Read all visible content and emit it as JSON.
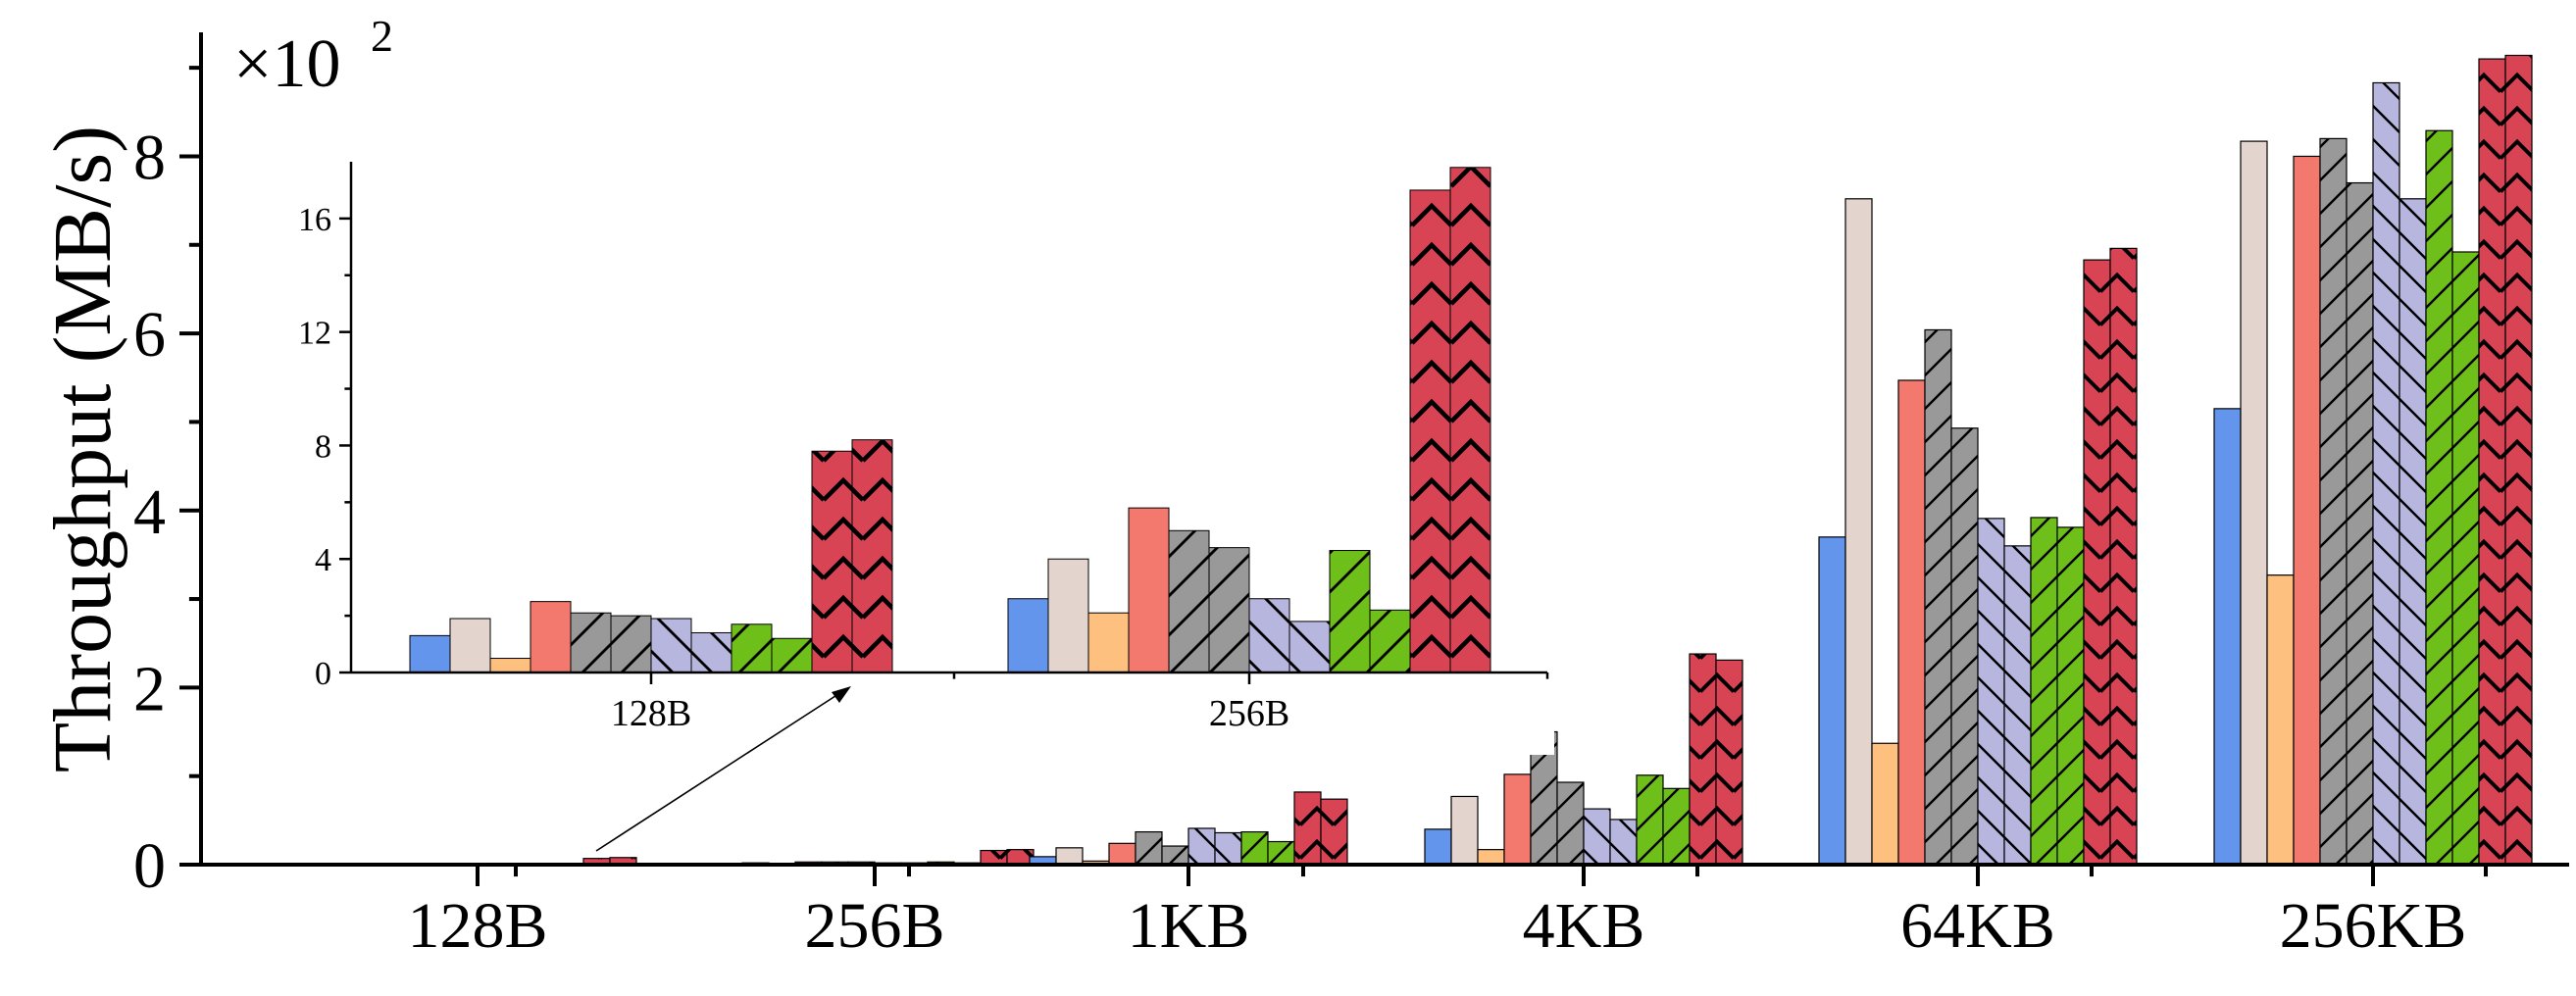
{
  "chart_data": [
    {
      "type": "bar",
      "title": "",
      "xlabel": "",
      "ylabel": "Throughput (MB/s)",
      "multiplier_label": "×10",
      "multiplier_exp": "2",
      "categories": [
        "128B",
        "256B",
        "1KB",
        "4KB",
        "64KB",
        "256KB"
      ],
      "ylim": [
        0,
        9.4
      ],
      "yticks": [
        0,
        2,
        4,
        6,
        8
      ],
      "ytick_labels": [
        "0",
        "2",
        "4",
        "6",
        "8"
      ],
      "grid": false,
      "legend": "none",
      "series": [
        {
          "color": "#6495ED",
          "pattern": "solid",
          "values": [
            0.0,
            0.01,
            0.09,
            0.4,
            3.7,
            5.15
          ]
        },
        {
          "color": "#E3D5CE",
          "pattern": "solid",
          "values": [
            0.0,
            0.02,
            0.19,
            0.77,
            7.52,
            8.17
          ]
        },
        {
          "color": "#FDC07F",
          "pattern": "solid",
          "values": [
            0.0,
            0.01,
            0.04,
            0.17,
            1.37,
            3.27
          ]
        },
        {
          "color": "#F3796E",
          "pattern": "solid",
          "values": [
            0.0,
            0.03,
            0.24,
            1.02,
            5.47,
            8.0
          ]
        },
        {
          "color": "#999999",
          "pattern": "slash",
          "values": [
            0.0,
            0.03,
            0.37,
            1.5,
            6.04,
            8.2
          ]
        },
        {
          "color": "#999999",
          "pattern": "slash",
          "values": [
            0.0,
            0.03,
            0.21,
            0.93,
            4.93,
            7.7
          ]
        },
        {
          "color": "#B7B6DE",
          "pattern": "bslash",
          "values": [
            0.0,
            0.02,
            0.41,
            0.63,
            3.91,
            8.83
          ]
        },
        {
          "color": "#B7B6DE",
          "pattern": "bslash",
          "values": [
            0.0,
            0.02,
            0.36,
            0.51,
            3.6,
            7.52
          ]
        },
        {
          "color": "#6FBF1A",
          "pattern": "slash",
          "values": [
            0.0,
            0.03,
            0.37,
            1.01,
            3.92,
            8.29
          ]
        },
        {
          "color": "#6FBF1A",
          "pattern": "slash",
          "values": [
            0.0,
            0.02,
            0.26,
            0.86,
            3.81,
            6.92
          ]
        },
        {
          "color": "#D94455",
          "pattern": "chevron",
          "values": [
            0.07,
            0.16,
            0.82,
            2.38,
            6.83,
            9.1
          ]
        },
        {
          "color": "#D94455",
          "pattern": "chevron",
          "values": [
            0.08,
            0.17,
            0.74,
            2.31,
            6.96,
            9.14
          ]
        }
      ]
    },
    {
      "type": "bar",
      "title": "",
      "xlabel": "",
      "ylabel": "",
      "categories": [
        "128B",
        "256B"
      ],
      "ylim": [
        0,
        18
      ],
      "yticks": [
        0,
        4,
        8,
        12,
        16
      ],
      "ytick_labels": [
        "0",
        "4",
        "8",
        "12",
        "16"
      ],
      "grid": false,
      "legend": "none",
      "series": [
        {
          "color": "#6495ED",
          "pattern": "solid",
          "values": [
            1.3,
            2.6
          ]
        },
        {
          "color": "#E3D5CE",
          "pattern": "solid",
          "values": [
            1.9,
            4.0
          ]
        },
        {
          "color": "#FDC07F",
          "pattern": "solid",
          "values": [
            0.5,
            2.1
          ]
        },
        {
          "color": "#F3796E",
          "pattern": "solid",
          "values": [
            2.5,
            5.8
          ]
        },
        {
          "color": "#999999",
          "pattern": "slash",
          "values": [
            2.1,
            5.0
          ]
        },
        {
          "color": "#999999",
          "pattern": "slash",
          "values": [
            2.0,
            4.4
          ]
        },
        {
          "color": "#B7B6DE",
          "pattern": "bslash",
          "values": [
            1.9,
            2.6
          ]
        },
        {
          "color": "#B7B6DE",
          "pattern": "bslash",
          "values": [
            1.4,
            1.8
          ]
        },
        {
          "color": "#6FBF1A",
          "pattern": "slash",
          "values": [
            1.7,
            4.3
          ]
        },
        {
          "color": "#6FBF1A",
          "pattern": "slash",
          "values": [
            1.2,
            2.2
          ]
        },
        {
          "color": "#D94455",
          "pattern": "chevron",
          "values": [
            7.8,
            17.0
          ]
        },
        {
          "color": "#D94455",
          "pattern": "chevron",
          "values": [
            8.2,
            17.8
          ]
        }
      ]
    }
  ]
}
